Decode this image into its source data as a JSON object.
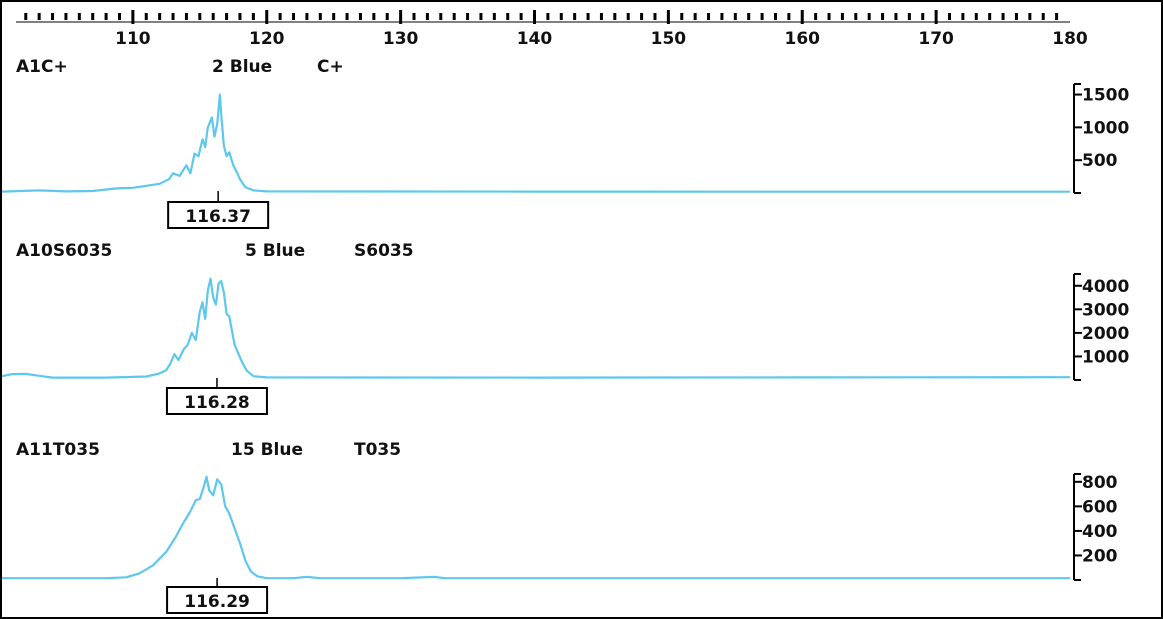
{
  "chart_data": {
    "type": "line",
    "x_axis": {
      "range": [
        100,
        180
      ],
      "tick_labels": [
        "110",
        "120",
        "130",
        "140",
        "150",
        "160",
        "170",
        "180"
      ]
    },
    "color": "#5ec8ec",
    "panels": [
      {
        "sample": "A1C+",
        "dye": "2 Blue",
        "marker": "C+",
        "y_ticks": [
          "1500",
          "1000",
          "500"
        ],
        "y_tick_values": [
          1500,
          1000,
          500
        ],
        "ylim": [
          0,
          1600
        ],
        "peak_label": "116.37",
        "peak_x": 116.37,
        "points": [
          [
            100.1,
            20
          ],
          [
            103,
            40
          ],
          [
            105,
            25
          ],
          [
            107,
            30
          ],
          [
            108.8,
            70
          ],
          [
            110,
            80
          ],
          [
            111,
            110
          ],
          [
            112,
            140
          ],
          [
            112.7,
            210
          ],
          [
            113,
            300
          ],
          [
            113.5,
            260
          ],
          [
            113.8,
            360
          ],
          [
            114,
            420
          ],
          [
            114.3,
            300
          ],
          [
            114.6,
            600
          ],
          [
            114.9,
            560
          ],
          [
            115.2,
            820
          ],
          [
            115.4,
            700
          ],
          [
            115.6,
            1000
          ],
          [
            115.9,
            1150
          ],
          [
            116.1,
            860
          ],
          [
            116.3,
            1050
          ],
          [
            116.5,
            1500
          ],
          [
            116.6,
            1200
          ],
          [
            116.8,
            720
          ],
          [
            117,
            560
          ],
          [
            117.2,
            620
          ],
          [
            117.5,
            420
          ],
          [
            117.8,
            300
          ],
          [
            118,
            210
          ],
          [
            118.4,
            90
          ],
          [
            119,
            40
          ],
          [
            120,
            25
          ],
          [
            140,
            22
          ],
          [
            160,
            20
          ],
          [
            180,
            20
          ]
        ]
      },
      {
        "sample": "A10S6035",
        "dye": "5 Blue",
        "marker": "S6035",
        "y_ticks": [
          "4000",
          "3000",
          "2000",
          "1000"
        ],
        "y_tick_values": [
          4000,
          3000,
          2000,
          1000
        ],
        "ylim": [
          0,
          4500
        ],
        "peak_label": "116.28",
        "peak_x": 116.28,
        "points": [
          [
            100.1,
            150
          ],
          [
            101,
            250
          ],
          [
            102,
            260
          ],
          [
            103,
            180
          ],
          [
            104,
            100
          ],
          [
            106,
            100
          ],
          [
            108,
            100
          ],
          [
            110,
            130
          ],
          [
            111,
            150
          ],
          [
            112,
            280
          ],
          [
            112.5,
            420
          ],
          [
            112.8,
            700
          ],
          [
            113.1,
            1100
          ],
          [
            113.4,
            850
          ],
          [
            113.8,
            1300
          ],
          [
            114.1,
            1500
          ],
          [
            114.4,
            2000
          ],
          [
            114.7,
            1700
          ],
          [
            115,
            2900
          ],
          [
            115.2,
            3300
          ],
          [
            115.4,
            2600
          ],
          [
            115.6,
            3800
          ],
          [
            115.8,
            4300
          ],
          [
            116,
            3500
          ],
          [
            116.2,
            3200
          ],
          [
            116.4,
            4100
          ],
          [
            116.6,
            4200
          ],
          [
            116.8,
            3700
          ],
          [
            117,
            2800
          ],
          [
            117.2,
            2700
          ],
          [
            117.4,
            2100
          ],
          [
            117.6,
            1500
          ],
          [
            117.9,
            1100
          ],
          [
            118.2,
            700
          ],
          [
            118.5,
            400
          ],
          [
            119,
            160
          ],
          [
            120,
            110
          ],
          [
            140,
            100
          ],
          [
            160,
            110
          ],
          [
            180,
            120
          ]
        ]
      },
      {
        "sample": "A11T035",
        "dye": "15 Blue",
        "marker": "T035",
        "y_ticks": [
          "800",
          "600",
          "400",
          "200"
        ],
        "y_tick_values": [
          800,
          600,
          400,
          200
        ],
        "ylim": [
          0,
          880
        ],
        "peak_label": "116.29",
        "peak_x": 116.29,
        "points": [
          [
            100.1,
            15
          ],
          [
            105,
            15
          ],
          [
            108,
            15
          ],
          [
            109.5,
            22
          ],
          [
            110.5,
            55
          ],
          [
            111.5,
            120
          ],
          [
            112.5,
            230
          ],
          [
            113.2,
            350
          ],
          [
            113.8,
            470
          ],
          [
            114.3,
            560
          ],
          [
            114.7,
            650
          ],
          [
            115,
            660
          ],
          [
            115.3,
            760
          ],
          [
            115.5,
            840
          ],
          [
            115.7,
            730
          ],
          [
            116,
            690
          ],
          [
            116.3,
            820
          ],
          [
            116.6,
            780
          ],
          [
            116.9,
            600
          ],
          [
            117.2,
            540
          ],
          [
            117.6,
            420
          ],
          [
            118,
            300
          ],
          [
            118.4,
            160
          ],
          [
            118.8,
            70
          ],
          [
            119.3,
            30
          ],
          [
            120,
            15
          ],
          [
            122,
            15
          ],
          [
            123,
            25
          ],
          [
            124,
            15
          ],
          [
            130,
            15
          ],
          [
            132.5,
            25
          ],
          [
            133.3,
            15
          ],
          [
            140,
            15
          ],
          [
            160,
            15
          ],
          [
            180,
            15
          ]
        ]
      }
    ]
  }
}
